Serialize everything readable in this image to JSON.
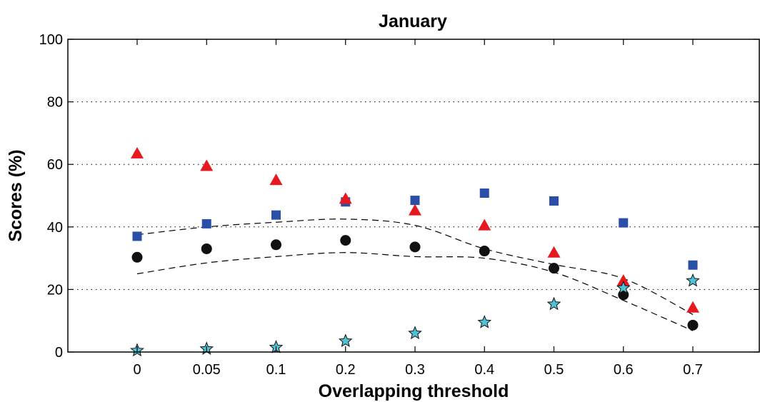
{
  "chart_data": {
    "type": "scatter",
    "title": "January",
    "xlabel": "Overlapping threshold",
    "ylabel": "Scores (%)",
    "categories": [
      "0",
      "0.05",
      "0.1",
      "0.2",
      "0.3",
      "0.4",
      "0.5",
      "0.6",
      "0.7"
    ],
    "ylim": [
      0,
      100
    ],
    "yticks": [
      "0",
      "20",
      "40",
      "60",
      "80",
      "100"
    ],
    "grid": "horizontal-dotted",
    "series": [
      {
        "marker": "square",
        "color": "#2b4ea8",
        "values": [
          37,
          41,
          43.8,
          48,
          48.5,
          50.8,
          48.3,
          41.3,
          27.8
        ]
      },
      {
        "marker": "triangle",
        "color": "#e8191e",
        "values": [
          63.5,
          59.5,
          55,
          49,
          45.3,
          40.5,
          31.8,
          22.8,
          14.2
        ]
      },
      {
        "marker": "circle",
        "color": "#111111",
        "values": [
          30.3,
          33,
          34.3,
          35.7,
          33.6,
          32.3,
          26.8,
          18.3,
          8.6
        ]
      },
      {
        "marker": "star",
        "color": "#4fc3d6",
        "values": [
          0.5,
          1,
          1.5,
          3.5,
          6,
          9.5,
          15.3,
          20.5,
          22.8
        ]
      }
    ],
    "bands": {
      "style": "dashed",
      "color": "#000000",
      "upper": [
        37.5,
        40,
        41.5,
        42.5,
        40.5,
        33,
        28,
        23.5,
        12
      ],
      "lower": [
        25,
        28.5,
        30.5,
        31.8,
        30.5,
        30,
        25.5,
        16.5,
        6.8
      ]
    }
  }
}
